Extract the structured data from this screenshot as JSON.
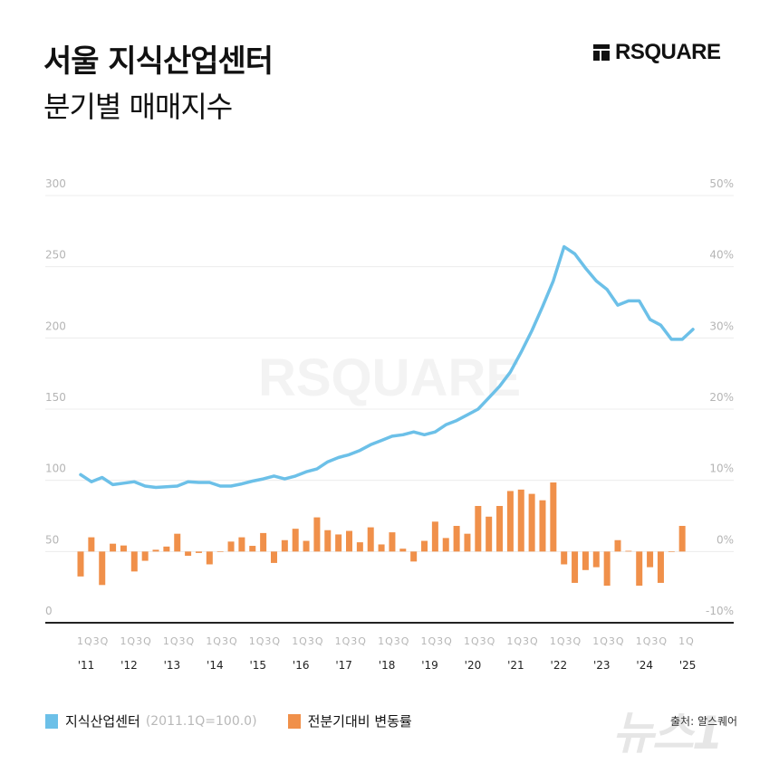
{
  "header": {
    "title": "서울 지식산업센터",
    "subtitle": "분기별 매매지수",
    "brand": "RSQUARE"
  },
  "watermark": "RSQUARE",
  "legend": {
    "line_label": "지식산업센터",
    "line_note": "(2011.1Q=100.0)",
    "bar_label": "전분기대비 변동률"
  },
  "source": "출처: 알스퀘어",
  "news_logo": "뉴스1",
  "colors": {
    "line": "#6cc0e8",
    "bar": "#f0904a",
    "axis": "#222222",
    "grid": "#ececec"
  },
  "chart_data": {
    "type": "line+bar",
    "x_year_labels": [
      "'11",
      "'12",
      "'13",
      "'14",
      "'15",
      "'16",
      "'17",
      "'18",
      "'19",
      "'20",
      "'21",
      "'22",
      "'23",
      "'24",
      "'25"
    ],
    "x_quarter_labels": [
      "1Q3Q",
      "1Q3Q",
      "1Q3Q",
      "1Q3Q",
      "1Q3Q",
      "1Q3Q",
      "1Q3Q",
      "1Q3Q",
      "1Q3Q",
      "1Q3Q",
      "1Q3Q",
      "1Q3Q",
      "1Q3Q",
      "1Q3Q",
      "1Q"
    ],
    "left_axis": {
      "ylim": [
        0,
        300
      ],
      "ticks": [
        "0",
        "50",
        "100",
        "150",
        "200",
        "250",
        "300"
      ]
    },
    "right_axis": {
      "ylim": [
        -10,
        50
      ],
      "ticks": [
        "-10%",
        "0%",
        "10%",
        "20%",
        "30%",
        "40%",
        "50%"
      ]
    },
    "grid": true,
    "legend_position": "bottom-left",
    "series": [
      {
        "name": "지식산업센터",
        "type": "line",
        "axis": "left",
        "values": [
          104,
          99,
          102,
          97,
          98,
          99,
          96,
          95,
          95.5,
          96,
          99,
          98.5,
          98.5,
          96,
          96,
          97.5,
          99.5,
          101,
          103,
          101,
          103,
          106,
          108,
          113,
          116,
          118,
          121,
          125,
          128,
          131,
          132,
          134,
          132,
          134,
          139,
          142,
          146,
          150,
          158,
          166,
          176,
          190,
          205,
          222,
          240,
          264,
          259,
          249,
          240,
          234,
          223,
          226,
          226,
          213,
          209,
          199,
          199,
          206
        ]
      },
      {
        "name": "전분기대비 변동률",
        "type": "bar",
        "axis": "right",
        "unit": "%",
        "values": [
          -3.5,
          2.0,
          -4.7,
          1.1,
          0.85,
          -2.8,
          -1.3,
          0.25,
          0.7,
          2.5,
          -0.6,
          -0.2,
          -1.8,
          0.0,
          1.4,
          2.0,
          0.8,
          2.6,
          -1.6,
          1.6,
          3.2,
          1.5,
          4.8,
          3.0,
          2.4,
          2.9,
          1.3,
          3.4,
          1.0,
          2.7,
          0.4,
          -1.4,
          1.5,
          4.2,
          1.9,
          3.6,
          2.5,
          6.4,
          4.9,
          6.4,
          8.5,
          8.7,
          8.1,
          7.2,
          9.7,
          -1.8,
          -4.4,
          -2.6,
          -2.2,
          -4.8,
          1.6,
          0.1,
          -4.8,
          -2.2,
          -4.4,
          0.0,
          3.6
        ]
      }
    ]
  }
}
